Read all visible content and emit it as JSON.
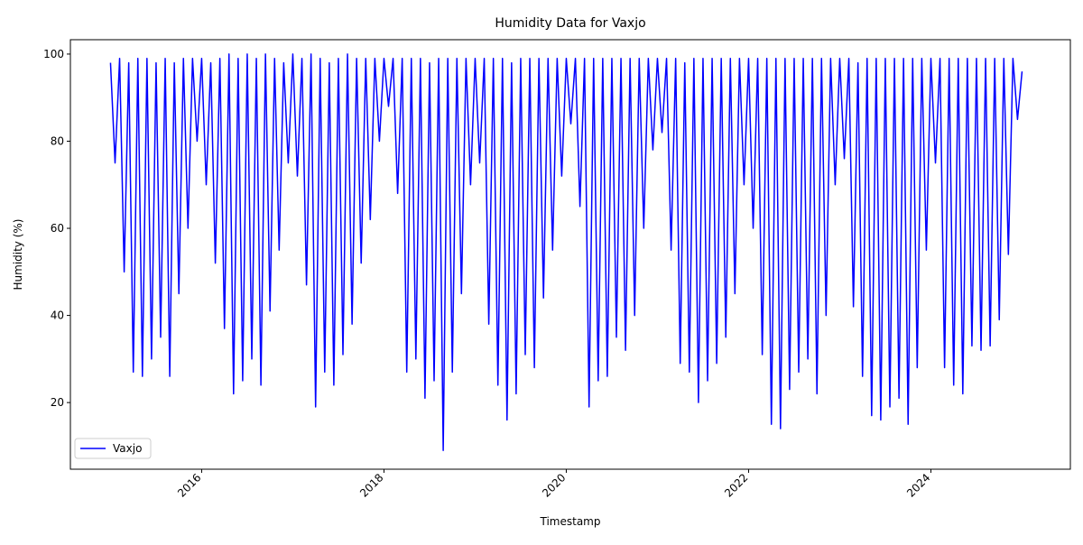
{
  "chart_data": {
    "type": "line",
    "title": "Humidity Data for Vaxjo",
    "x_label": "Timestamp",
    "y_label": "Humidity (%)",
    "x": [
      2015,
      2015.05,
      2015.1,
      2015.15,
      2015.2,
      2015.25,
      2015.3,
      2015.35,
      2015.4,
      2015.45,
      2015.5,
      2015.55,
      2015.6,
      2015.65,
      2015.7,
      2015.75,
      2015.8,
      2015.85,
      2015.9,
      2015.95,
      2016,
      2016.05,
      2016.1,
      2016.15,
      2016.2,
      2016.25,
      2016.3,
      2016.35,
      2016.4,
      2016.45,
      2016.5,
      2016.55,
      2016.6,
      2016.65,
      2016.7,
      2016.75,
      2016.8,
      2016.85,
      2016.9,
      2016.95,
      2017,
      2017.05,
      2017.1,
      2017.15,
      2017.2,
      2017.25,
      2017.3,
      2017.35,
      2017.4,
      2017.45,
      2017.5,
      2017.55,
      2017.6,
      2017.65,
      2017.7,
      2017.75,
      2017.8,
      2017.85,
      2017.9,
      2017.95,
      2018,
      2018.05,
      2018.1,
      2018.15,
      2018.2,
      2018.25,
      2018.3,
      2018.35,
      2018.4,
      2018.45,
      2018.5,
      2018.55,
      2018.6,
      2018.65,
      2018.7,
      2018.75,
      2018.8,
      2018.85,
      2018.9,
      2018.95,
      2019,
      2019.05,
      2019.1,
      2019.15,
      2019.2,
      2019.25,
      2019.3,
      2019.35,
      2019.4,
      2019.45,
      2019.5,
      2019.55,
      2019.6,
      2019.65,
      2019.7,
      2019.75,
      2019.8,
      2019.85,
      2019.9,
      2019.95,
      2020,
      2020.05,
      2020.1,
      2020.15,
      2020.2,
      2020.25,
      2020.3,
      2020.35,
      2020.4,
      2020.45,
      2020.5,
      2020.55,
      2020.6,
      2020.65,
      2020.7,
      2020.75,
      2020.8,
      2020.85,
      2020.9,
      2020.95,
      2021,
      2021.05,
      2021.1,
      2021.15,
      2021.2,
      2021.25,
      2021.3,
      2021.35,
      2021.4,
      2021.45,
      2021.5,
      2021.55,
      2021.6,
      2021.65,
      2021.7,
      2021.75,
      2021.8,
      2021.85,
      2021.9,
      2021.95,
      2022,
      2022.05,
      2022.1,
      2022.15,
      2022.2,
      2022.25,
      2022.3,
      2022.35,
      2022.4,
      2022.45,
      2022.5,
      2022.55,
      2022.6,
      2022.65,
      2022.7,
      2022.75,
      2022.8,
      2022.85,
      2022.9,
      2022.95,
      2023,
      2023.05,
      2023.1,
      2023.15,
      2023.2,
      2023.25,
      2023.3,
      2023.35,
      2023.4,
      2023.45,
      2023.5,
      2023.55,
      2023.6,
      2023.65,
      2023.7,
      2023.75,
      2023.8,
      2023.85,
      2023.9,
      2023.95,
      2024,
      2024.05,
      2024.1,
      2024.15,
      2024.2,
      2024.25,
      2024.3,
      2024.35,
      2024.4,
      2024.45,
      2024.5,
      2024.55,
      2024.6,
      2024.65,
      2024.7,
      2024.75,
      2024.8,
      2024.85,
      2024.9,
      2024.95,
      2025
    ],
    "series": [
      {
        "name": "Vaxjo",
        "color": "#0000ff",
        "values": [
          98,
          75,
          99,
          50,
          98,
          27,
          99,
          26,
          99,
          30,
          98,
          35,
          99,
          26,
          98,
          45,
          99,
          60,
          99,
          80,
          99,
          70,
          98,
          52,
          99,
          37,
          100,
          22,
          99,
          25,
          100,
          30,
          99,
          24,
          100,
          41,
          99,
          55,
          98,
          75,
          100,
          72,
          99,
          47,
          100,
          19,
          99,
          27,
          98,
          24,
          99,
          31,
          100,
          38,
          99,
          52,
          99,
          62,
          99,
          80,
          99,
          88,
          99,
          68,
          99,
          27,
          99,
          30,
          99,
          21,
          98,
          25,
          99,
          9,
          99,
          27,
          99,
          45,
          99,
          70,
          99,
          75,
          99,
          38,
          99,
          24,
          99,
          16,
          98,
          22,
          99,
          31,
          99,
          28,
          99,
          44,
          99,
          55,
          99,
          72,
          99,
          84,
          99,
          65,
          99,
          19,
          99,
          25,
          99,
          26,
          99,
          35,
          99,
          32,
          99,
          40,
          99,
          60,
          99,
          78,
          99,
          82,
          99,
          55,
          99,
          29,
          98,
          27,
          99,
          20,
          99,
          25,
          99,
          29,
          99,
          35,
          99,
          45,
          99,
          70,
          99,
          60,
          99,
          31,
          99,
          15,
          99,
          14,
          99,
          23,
          99,
          27,
          99,
          30,
          99,
          22,
          99,
          40,
          99,
          70,
          99,
          76,
          99,
          42,
          98,
          26,
          99,
          17,
          99,
          16,
          99,
          19,
          99,
          21,
          99,
          15,
          99,
          28,
          99,
          55,
          99,
          75,
          99,
          28,
          99,
          24,
          99,
          22,
          99,
          33,
          99,
          32,
          99,
          33,
          99,
          39,
          99,
          54,
          99,
          85,
          96
        ]
      }
    ],
    "xlim": [
      2014.56,
      2025.53
    ],
    "xticks": [
      2016,
      2018,
      2020,
      2022,
      2024
    ],
    "ylim": [
      4.7,
      103.3
    ],
    "yticks": [
      20,
      40,
      60,
      80,
      100
    ],
    "legend": "lower left"
  }
}
